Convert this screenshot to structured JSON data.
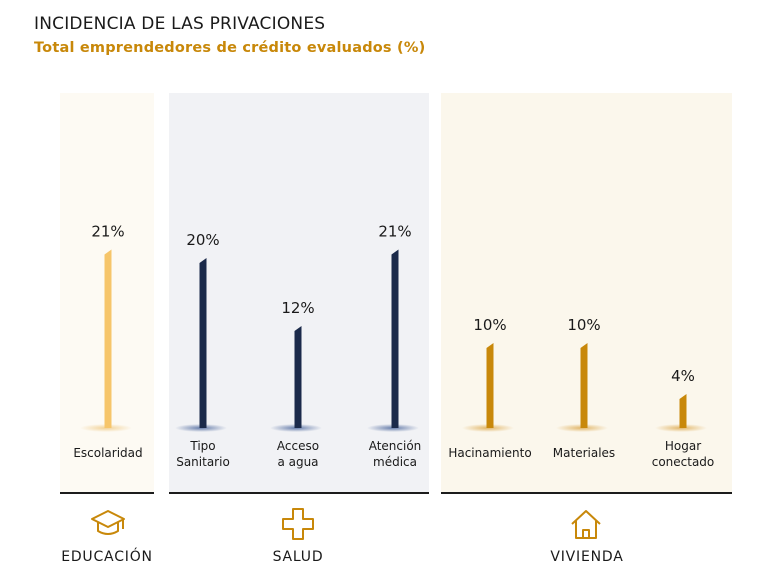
{
  "title": "INCIDENCIA DE LAS PRIVACIONES",
  "subtitle": "Total emprendedores de crédito evaluados (%)",
  "groups": [
    {
      "label": "EDUCACIÓN",
      "icon": "graduation-cap-icon"
    },
    {
      "label": "SALUD",
      "icon": "medical-cross-icon"
    },
    {
      "label": "VIVIENDA",
      "icon": "house-icon"
    }
  ],
  "colors": {
    "educacion": "#f6c56a",
    "salud": "#1b2a4a",
    "vivienda": "#c8880a",
    "subtitle": "#c8880a"
  },
  "chart_data": {
    "type": "bar",
    "title": "INCIDENCIA DE LAS PRIVACIONES",
    "subtitle": "Total emprendedores de crédito evaluados (%)",
    "categories": [
      "Escolaridad",
      "Tipo Sanitario",
      "Acceso a agua",
      "Atención médica",
      "Hacinamiento",
      "Materiales",
      "Hogar conectado"
    ],
    "category_lines": [
      [
        "Escolaridad"
      ],
      [
        "Tipo",
        "Sanitario"
      ],
      [
        "Acceso",
        "a agua"
      ],
      [
        "Atención",
        "médica"
      ],
      [
        "Hacinamiento"
      ],
      [
        "Materiales"
      ],
      [
        "Hogar",
        "conectado"
      ]
    ],
    "groups": [
      "EDUCACIÓN",
      "SALUD",
      "SALUD",
      "SALUD",
      "VIVIENDA",
      "VIVIENDA",
      "VIVIENDA"
    ],
    "values": [
      21,
      20,
      12,
      21,
      10,
      10,
      4
    ],
    "value_labels": [
      "21%",
      "20%",
      "12%",
      "21%",
      "10%",
      "10%",
      "4%"
    ],
    "unit": "%",
    "ylim": [
      0,
      21
    ],
    "grid": false,
    "legend": "none"
  }
}
